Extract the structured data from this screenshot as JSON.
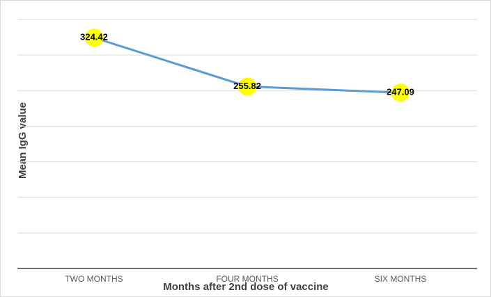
{
  "chart_data": {
    "type": "line",
    "x_label": "Months after 2nd dose of vaccine",
    "y_label": "Mean IgG value",
    "categories": [
      "TWO MONTHS",
      "FOUR MONTHS",
      "SIX MONTHS"
    ],
    "series": [
      {
        "color": "#5b9bd5",
        "marker_color": "#ffff00",
        "values": [
          324.42,
          255.82,
          247.09
        ]
      }
    ],
    "ylim": [
      0,
      350
    ],
    "yticks": [
      0,
      50,
      100,
      150,
      200,
      250,
      300,
      350
    ],
    "grid": true
  }
}
